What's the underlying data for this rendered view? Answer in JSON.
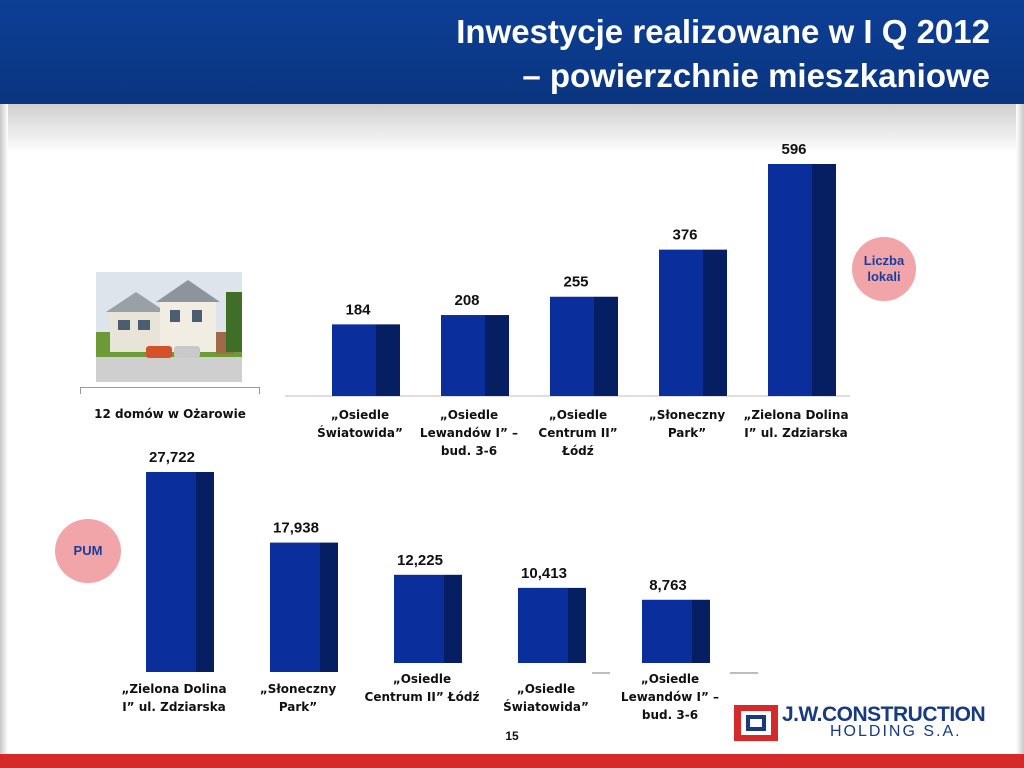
{
  "title_line1": "Inwestycje realizowane w I Q 2012",
  "title_line2": "– powierzchnie mieszkaniowe",
  "photo_caption": "12 domów w Ożarowie",
  "page_number": "15",
  "logo": {
    "line1": "J.W.CONSTRUCTION",
    "line2": "HOLDING S.A."
  },
  "colors": {
    "header": "#0c3a8c",
    "bar_front": "#0a2f9c",
    "bar_side": "#061f63",
    "badge": "#f2a5a8",
    "badge_text": "#1a3d9a",
    "bottom_bar": "#d62a2a"
  },
  "chart_data": [
    {
      "type": "bar",
      "badge": "Liczba lokali",
      "categories": [
        "„Osiedle Światowida”",
        "„Osiedle Lewandów I” – bud. 3-6",
        "„Osiedle Centrum II” Łódź",
        "„Słoneczny Park”",
        "„Zielona Dolina I” ul. Zdziarska"
      ],
      "values": [
        184,
        208,
        255,
        376,
        596
      ],
      "value_labels": [
        "184",
        "208",
        "255",
        "376",
        "596"
      ]
    },
    {
      "type": "bar",
      "badge": "PUM",
      "categories": [
        "„Zielona Dolina I” ul. Zdziarska",
        "„Słoneczny Park”",
        "„Osiedle Centrum II” Łódź",
        "„Osiedle Światowida”",
        "„Osiedle Lewandów I” – bud. 3-6"
      ],
      "values": [
        27722,
        17938,
        12225,
        10413,
        8763
      ],
      "value_labels": [
        "27,722",
        "17,938",
        "12,225",
        "10,413",
        "8,763"
      ]
    }
  ]
}
